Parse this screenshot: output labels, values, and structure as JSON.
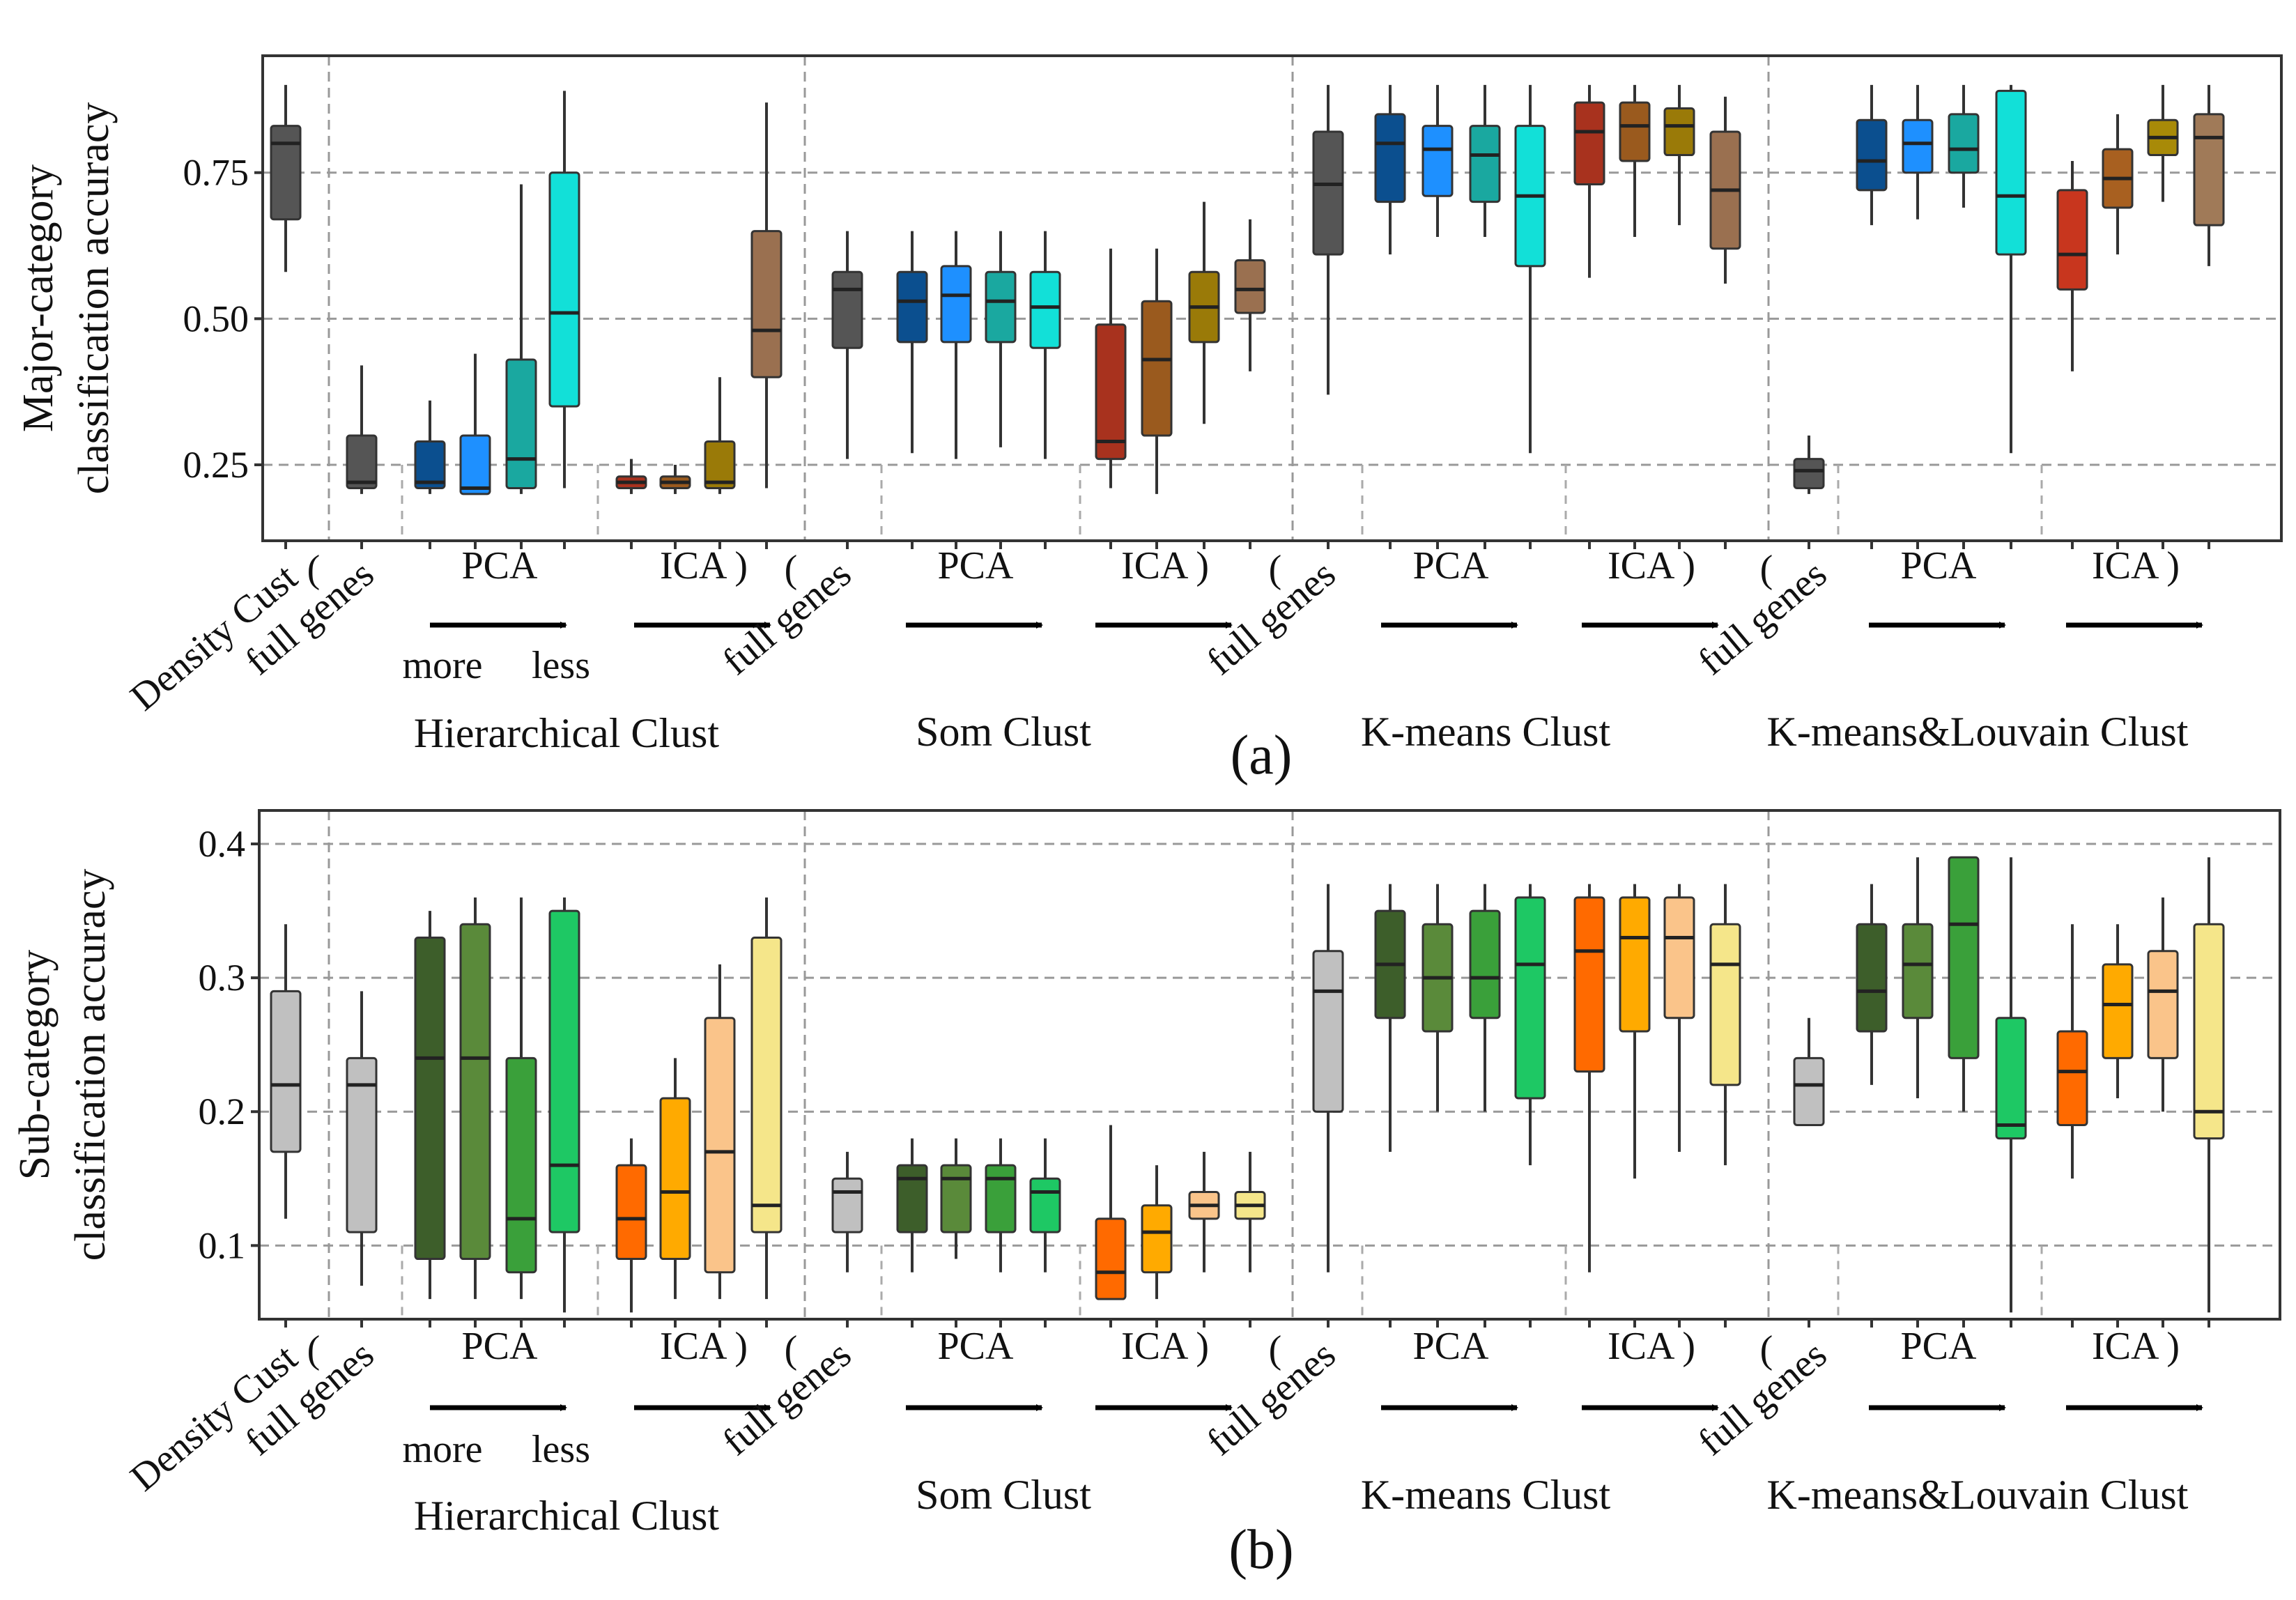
{
  "chart_data": [
    {
      "type": "box",
      "panel": "(a)",
      "ylabel": [
        "Major-category",
        "classification accuracy"
      ],
      "yticks": [
        0.25,
        0.5,
        0.75
      ],
      "ylim": [
        0.12,
        0.95
      ],
      "grid": true,
      "x_labels": {
        "density": "Density Cust",
        "open_paren": "(",
        "full_genes": "full genes",
        "pca": "PCA",
        "ica": "ICA )",
        "more": "more",
        "less": "less"
      },
      "groups": [
        "Hierarchical Clust",
        "Som Clust",
        "K-means Clust",
        "K-means&Louvain Clust"
      ],
      "boxes": [
        {
          "group": "Density Cust",
          "color": "#555555",
          "whislo": 0.58,
          "q1": 0.67,
          "med": 0.8,
          "q3": 0.83,
          "whishi": 0.9
        },
        {
          "group": "Hierarchical Clust",
          "method": "full genes",
          "color": "#555555",
          "whislo": 0.2,
          "q1": 0.21,
          "med": 0.22,
          "q3": 0.3,
          "whishi": 0.42
        },
        {
          "group": "Hierarchical Clust",
          "method": "PCA",
          "color": "#0b4f8f",
          "whislo": 0.2,
          "q1": 0.21,
          "med": 0.22,
          "q3": 0.29,
          "whishi": 0.36
        },
        {
          "group": "Hierarchical Clust",
          "method": "PCA",
          "color": "#1e90ff",
          "whislo": 0.2,
          "q1": 0.2,
          "med": 0.21,
          "q3": 0.3,
          "whishi": 0.44
        },
        {
          "group": "Hierarchical Clust",
          "method": "PCA",
          "color": "#1aa8a0",
          "whislo": 0.2,
          "q1": 0.21,
          "med": 0.26,
          "q3": 0.43,
          "whishi": 0.73
        },
        {
          "group": "Hierarchical Clust",
          "method": "PCA",
          "color": "#12e0d8",
          "whislo": 0.21,
          "q1": 0.35,
          "med": 0.51,
          "q3": 0.75,
          "whishi": 0.89
        },
        {
          "group": "Hierarchical Clust",
          "method": "ICA",
          "color": "#a8321e",
          "whislo": 0.2,
          "q1": 0.21,
          "med": 0.22,
          "q3": 0.23,
          "whishi": 0.26
        },
        {
          "group": "Hierarchical Clust",
          "method": "ICA",
          "color": "#9a5a1e",
          "whislo": 0.2,
          "q1": 0.21,
          "med": 0.22,
          "q3": 0.23,
          "whishi": 0.25
        },
        {
          "group": "Hierarchical Clust",
          "method": "ICA",
          "color": "#9a7a08",
          "whislo": 0.2,
          "q1": 0.21,
          "med": 0.22,
          "q3": 0.29,
          "whishi": 0.4
        },
        {
          "group": "Hierarchical Clust",
          "method": "ICA",
          "color": "#9a7050",
          "whislo": 0.21,
          "q1": 0.4,
          "med": 0.48,
          "q3": 0.65,
          "whishi": 0.87
        },
        {
          "group": "Som Clust",
          "method": "full genes",
          "color": "#555555",
          "whislo": 0.26,
          "q1": 0.45,
          "med": 0.55,
          "q3": 0.58,
          "whishi": 0.65
        },
        {
          "group": "Som Clust",
          "method": "PCA",
          "color": "#0b4f8f",
          "whislo": 0.27,
          "q1": 0.46,
          "med": 0.53,
          "q3": 0.58,
          "whishi": 0.65
        },
        {
          "group": "Som Clust",
          "method": "PCA",
          "color": "#1e90ff",
          "whislo": 0.26,
          "q1": 0.46,
          "med": 0.54,
          "q3": 0.59,
          "whishi": 0.65
        },
        {
          "group": "Som Clust",
          "method": "PCA",
          "color": "#1aa8a0",
          "whislo": 0.28,
          "q1": 0.46,
          "med": 0.53,
          "q3": 0.58,
          "whishi": 0.65
        },
        {
          "group": "Som Clust",
          "method": "PCA",
          "color": "#12e0d8",
          "whislo": 0.26,
          "q1": 0.45,
          "med": 0.52,
          "q3": 0.58,
          "whishi": 0.65
        },
        {
          "group": "Som Clust",
          "method": "ICA",
          "color": "#a8321e",
          "whislo": 0.21,
          "q1": 0.26,
          "med": 0.29,
          "q3": 0.49,
          "whishi": 0.62
        },
        {
          "group": "Som Clust",
          "method": "ICA",
          "color": "#9a5a1e",
          "whislo": 0.2,
          "q1": 0.3,
          "med": 0.43,
          "q3": 0.53,
          "whishi": 0.62
        },
        {
          "group": "Som Clust",
          "method": "ICA",
          "color": "#9a7a08",
          "whislo": 0.32,
          "q1": 0.46,
          "med": 0.52,
          "q3": 0.58,
          "whishi": 0.7
        },
        {
          "group": "Som Clust",
          "method": "ICA",
          "color": "#9a7050",
          "whislo": 0.41,
          "q1": 0.51,
          "med": 0.55,
          "q3": 0.6,
          "whishi": 0.67
        },
        {
          "group": "K-means Clust",
          "method": "full genes",
          "color": "#555555",
          "whislo": 0.37,
          "q1": 0.61,
          "med": 0.73,
          "q3": 0.82,
          "whishi": 0.9
        },
        {
          "group": "K-means Clust",
          "method": "PCA",
          "color": "#0b4f8f",
          "whislo": 0.61,
          "q1": 0.7,
          "med": 0.8,
          "q3": 0.85,
          "whishi": 0.9
        },
        {
          "group": "K-means Clust",
          "method": "PCA",
          "color": "#1e90ff",
          "whislo": 0.64,
          "q1": 0.71,
          "med": 0.79,
          "q3": 0.83,
          "whishi": 0.9
        },
        {
          "group": "K-means Clust",
          "method": "PCA",
          "color": "#1aa8a0",
          "whislo": 0.64,
          "q1": 0.7,
          "med": 0.78,
          "q3": 0.83,
          "whishi": 0.9
        },
        {
          "group": "K-means Clust",
          "method": "PCA",
          "color": "#12e0d8",
          "whislo": 0.27,
          "q1": 0.59,
          "med": 0.71,
          "q3": 0.83,
          "whishi": 0.9
        },
        {
          "group": "K-means Clust",
          "method": "ICA",
          "color": "#a8321e",
          "whislo": 0.57,
          "q1": 0.73,
          "med": 0.82,
          "q3": 0.87,
          "whishi": 0.9
        },
        {
          "group": "K-means Clust",
          "method": "ICA",
          "color": "#9a5a1e",
          "whislo": 0.64,
          "q1": 0.77,
          "med": 0.83,
          "q3": 0.87,
          "whishi": 0.9
        },
        {
          "group": "K-means Clust",
          "method": "ICA",
          "color": "#9a7a08",
          "whislo": 0.66,
          "q1": 0.78,
          "med": 0.83,
          "q3": 0.86,
          "whishi": 0.9
        },
        {
          "group": "K-means Clust",
          "method": "ICA",
          "color": "#9a7050",
          "whislo": 0.56,
          "q1": 0.62,
          "med": 0.72,
          "q3": 0.82,
          "whishi": 0.88
        },
        {
          "group": "K-means&Louvain Clust",
          "method": "full genes",
          "color": "#555555",
          "whislo": 0.2,
          "q1": 0.21,
          "med": 0.24,
          "q3": 0.26,
          "whishi": 0.3
        },
        {
          "group": "K-means&Louvain Clust",
          "method": "PCA",
          "color": "#0b4f8f",
          "whislo": 0.66,
          "q1": 0.72,
          "med": 0.77,
          "q3": 0.84,
          "whishi": 0.9
        },
        {
          "group": "K-means&Louvain Clust",
          "method": "PCA",
          "color": "#1e90ff",
          "whislo": 0.67,
          "q1": 0.75,
          "med": 0.8,
          "q3": 0.84,
          "whishi": 0.9
        },
        {
          "group": "K-means&Louvain Clust",
          "method": "PCA",
          "color": "#1aa8a0",
          "whislo": 0.69,
          "q1": 0.75,
          "med": 0.79,
          "q3": 0.85,
          "whishi": 0.9
        },
        {
          "group": "K-means&Louvain Clust",
          "method": "PCA",
          "color": "#12e0d8",
          "whislo": 0.27,
          "q1": 0.61,
          "med": 0.71,
          "q3": 0.89,
          "whishi": 0.9
        },
        {
          "group": "K-means&Louvain Clust",
          "method": "ICA",
          "color": "#c8361e",
          "whislo": 0.41,
          "q1": 0.55,
          "med": 0.61,
          "q3": 0.72,
          "whishi": 0.77
        },
        {
          "group": "K-means&Louvain Clust",
          "method": "ICA",
          "color": "#a86020",
          "whislo": 0.61,
          "q1": 0.69,
          "med": 0.74,
          "q3": 0.79,
          "whishi": 0.85
        },
        {
          "group": "K-means&Louvain Clust",
          "method": "ICA",
          "color": "#a88a08",
          "whislo": 0.7,
          "q1": 0.78,
          "med": 0.81,
          "q3": 0.84,
          "whishi": 0.9
        },
        {
          "group": "K-means&Louvain Clust",
          "method": "ICA",
          "color": "#a07a58",
          "whislo": 0.59,
          "q1": 0.66,
          "med": 0.81,
          "q3": 0.85,
          "whishi": 0.9
        }
      ]
    },
    {
      "type": "box",
      "panel": "(b)",
      "ylabel": [
        "Sub-category",
        "classification accuracy"
      ],
      "yticks": [
        0.1,
        0.2,
        0.3,
        0.4
      ],
      "ylim": [
        0.045,
        0.425
      ],
      "grid": true,
      "x_labels": {
        "density": "Density Cust",
        "open_paren": "(",
        "full_genes": "full genes",
        "pca": "PCA",
        "ica": "ICA )",
        "more": "more",
        "less": "less"
      },
      "groups": [
        "Hierarchical Clust",
        "Som Clust",
        "K-means Clust",
        "K-means&Louvain Clust"
      ],
      "boxes": [
        {
          "group": "Density Cust",
          "color": "#c0c0c0",
          "whislo": 0.12,
          "q1": 0.17,
          "med": 0.22,
          "q3": 0.29,
          "whishi": 0.34
        },
        {
          "group": "Hierarchical Clust",
          "method": "full genes",
          "color": "#c0c0c0",
          "whislo": 0.07,
          "q1": 0.11,
          "med": 0.22,
          "q3": 0.24,
          "whishi": 0.29
        },
        {
          "group": "Hierarchical Clust",
          "method": "PCA",
          "color": "#3d5e2a",
          "whislo": 0.06,
          "q1": 0.09,
          "med": 0.24,
          "q3": 0.33,
          "whishi": 0.35
        },
        {
          "group": "Hierarchical Clust",
          "method": "PCA",
          "color": "#5a8a3a",
          "whislo": 0.06,
          "q1": 0.09,
          "med": 0.24,
          "q3": 0.34,
          "whishi": 0.36
        },
        {
          "group": "Hierarchical Clust",
          "method": "PCA",
          "color": "#3aa03a",
          "whislo": 0.06,
          "q1": 0.08,
          "med": 0.12,
          "q3": 0.24,
          "whishi": 0.36
        },
        {
          "group": "Hierarchical Clust",
          "method": "PCA",
          "color": "#1ec864",
          "whislo": 0.05,
          "q1": 0.11,
          "med": 0.16,
          "q3": 0.35,
          "whishi": 0.36
        },
        {
          "group": "Hierarchical Clust",
          "method": "ICA",
          "color": "#ff6a00",
          "whislo": 0.05,
          "q1": 0.09,
          "med": 0.12,
          "q3": 0.16,
          "whishi": 0.18
        },
        {
          "group": "Hierarchical Clust",
          "method": "ICA",
          "color": "#ffaa00",
          "whislo": 0.06,
          "q1": 0.09,
          "med": 0.14,
          "q3": 0.21,
          "whishi": 0.24
        },
        {
          "group": "Hierarchical Clust",
          "method": "ICA",
          "color": "#fac48a",
          "whislo": 0.06,
          "q1": 0.08,
          "med": 0.17,
          "q3": 0.27,
          "whishi": 0.31
        },
        {
          "group": "Hierarchical Clust",
          "method": "ICA",
          "color": "#f5e68a",
          "whislo": 0.06,
          "q1": 0.11,
          "med": 0.13,
          "q3": 0.33,
          "whishi": 0.36
        },
        {
          "group": "Som Clust",
          "method": "full genes",
          "color": "#c0c0c0",
          "whislo": 0.08,
          "q1": 0.11,
          "med": 0.14,
          "q3": 0.15,
          "whishi": 0.17
        },
        {
          "group": "Som Clust",
          "method": "PCA",
          "color": "#3d5e2a",
          "whislo": 0.08,
          "q1": 0.11,
          "med": 0.15,
          "q3": 0.16,
          "whishi": 0.18
        },
        {
          "group": "Som Clust",
          "method": "PCA",
          "color": "#5a8a3a",
          "whislo": 0.09,
          "q1": 0.11,
          "med": 0.15,
          "q3": 0.16,
          "whishi": 0.18
        },
        {
          "group": "Som Clust",
          "method": "PCA",
          "color": "#3aa03a",
          "whislo": 0.08,
          "q1": 0.11,
          "med": 0.15,
          "q3": 0.16,
          "whishi": 0.18
        },
        {
          "group": "Som Clust",
          "method": "PCA",
          "color": "#1ec864",
          "whislo": 0.08,
          "q1": 0.11,
          "med": 0.14,
          "q3": 0.15,
          "whishi": 0.18
        },
        {
          "group": "Som Clust",
          "method": "ICA",
          "color": "#ff6a00",
          "whislo": 0.06,
          "q1": 0.06,
          "med": 0.08,
          "q3": 0.12,
          "whishi": 0.19
        },
        {
          "group": "Som Clust",
          "method": "ICA",
          "color": "#ffaa00",
          "whislo": 0.06,
          "q1": 0.08,
          "med": 0.11,
          "q3": 0.13,
          "whishi": 0.16
        },
        {
          "group": "Som Clust",
          "method": "ICA",
          "color": "#fac48a",
          "whislo": 0.08,
          "q1": 0.12,
          "med": 0.13,
          "q3": 0.14,
          "whishi": 0.17
        },
        {
          "group": "Som Clust",
          "method": "ICA",
          "color": "#f5e68a",
          "whislo": 0.08,
          "q1": 0.12,
          "med": 0.13,
          "q3": 0.14,
          "whishi": 0.17
        },
        {
          "group": "K-means Clust",
          "method": "full genes",
          "color": "#c0c0c0",
          "whislo": 0.08,
          "q1": 0.2,
          "med": 0.29,
          "q3": 0.32,
          "whishi": 0.37
        },
        {
          "group": "K-means Clust",
          "method": "PCA",
          "color": "#3d5e2a",
          "whislo": 0.17,
          "q1": 0.27,
          "med": 0.31,
          "q3": 0.35,
          "whishi": 0.37
        },
        {
          "group": "K-means Clust",
          "method": "PCA",
          "color": "#5a8a3a",
          "whislo": 0.2,
          "q1": 0.26,
          "med": 0.3,
          "q3": 0.34,
          "whishi": 0.37
        },
        {
          "group": "K-means Clust",
          "method": "PCA",
          "color": "#3aa03a",
          "whislo": 0.2,
          "q1": 0.27,
          "med": 0.3,
          "q3": 0.35,
          "whishi": 0.37
        },
        {
          "group": "K-means Clust",
          "method": "PCA",
          "color": "#1ec864",
          "whislo": 0.16,
          "q1": 0.21,
          "med": 0.31,
          "q3": 0.36,
          "whishi": 0.37
        },
        {
          "group": "K-means Clust",
          "method": "ICA",
          "color": "#ff6a00",
          "whislo": 0.08,
          "q1": 0.23,
          "med": 0.32,
          "q3": 0.36,
          "whishi": 0.37
        },
        {
          "group": "K-means Clust",
          "method": "ICA",
          "color": "#ffaa00",
          "whislo": 0.15,
          "q1": 0.26,
          "med": 0.33,
          "q3": 0.36,
          "whishi": 0.37
        },
        {
          "group": "K-means Clust",
          "method": "ICA",
          "color": "#fac48a",
          "whislo": 0.17,
          "q1": 0.27,
          "med": 0.33,
          "q3": 0.36,
          "whishi": 0.37
        },
        {
          "group": "K-means Clust",
          "method": "ICA",
          "color": "#f5e68a",
          "whislo": 0.16,
          "q1": 0.22,
          "med": 0.31,
          "q3": 0.34,
          "whishi": 0.37
        },
        {
          "group": "K-means&Louvain Clust",
          "method": "full genes",
          "color": "#c0c0c0",
          "whislo": 0.19,
          "q1": 0.19,
          "med": 0.22,
          "q3": 0.24,
          "whishi": 0.27
        },
        {
          "group": "K-means&Louvain Clust",
          "method": "PCA",
          "color": "#3d5e2a",
          "whislo": 0.22,
          "q1": 0.26,
          "med": 0.29,
          "q3": 0.34,
          "whishi": 0.37
        },
        {
          "group": "K-means&Louvain Clust",
          "method": "PCA",
          "color": "#5a8a3a",
          "whislo": 0.21,
          "q1": 0.27,
          "med": 0.31,
          "q3": 0.34,
          "whishi": 0.39
        },
        {
          "group": "K-means&Louvain Clust",
          "method": "PCA",
          "color": "#3aa03a",
          "whislo": 0.2,
          "q1": 0.24,
          "med": 0.34,
          "q3": 0.39,
          "whishi": 0.39
        },
        {
          "group": "K-means&Louvain Clust",
          "method": "PCA",
          "color": "#1ec864",
          "whislo": 0.05,
          "q1": 0.18,
          "med": 0.19,
          "q3": 0.27,
          "whishi": 0.39
        },
        {
          "group": "K-means&Louvain Clust",
          "method": "ICA",
          "color": "#ff6a00",
          "whislo": 0.15,
          "q1": 0.19,
          "med": 0.23,
          "q3": 0.26,
          "whishi": 0.34
        },
        {
          "group": "K-means&Louvain Clust",
          "method": "ICA",
          "color": "#ffaa00",
          "whislo": 0.21,
          "q1": 0.24,
          "med": 0.28,
          "q3": 0.31,
          "whishi": 0.34
        },
        {
          "group": "K-means&Louvain Clust",
          "method": "ICA",
          "color": "#fac48a",
          "whislo": 0.2,
          "q1": 0.24,
          "med": 0.29,
          "q3": 0.32,
          "whishi": 0.36
        },
        {
          "group": "K-means&Louvain Clust",
          "method": "ICA",
          "color": "#f5e68a",
          "whislo": 0.05,
          "q1": 0.18,
          "med": 0.2,
          "q3": 0.34,
          "whishi": 0.39
        }
      ]
    }
  ]
}
